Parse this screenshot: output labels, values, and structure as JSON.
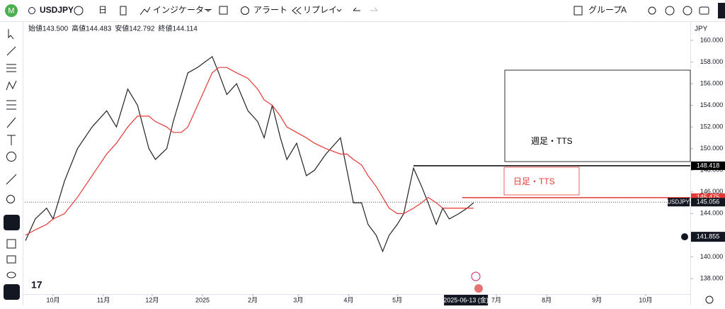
{
  "toolbar": {
    "symbol": "USDJPY",
    "interval": "日",
    "indicators": "インジケーター",
    "alert": "アラート",
    "replay": "リプレイ",
    "group": "グループ",
    "group_id": "A"
  },
  "ohlc": [
    "始値143.500",
    "高値144.483",
    "安値142.792",
    "終値144.114"
  ],
  "chart_data": {
    "type": "line",
    "currency": "JPY",
    "x": [
      -17,
      -11,
      -4,
      0,
      7,
      15,
      24,
      33,
      39,
      46,
      52,
      59,
      63,
      70,
      74,
      79,
      83,
      89,
      98,
      102,
      107,
      113,
      120,
      126,
      130,
      135,
      140,
      144,
      150,
      156,
      161,
      168,
      177,
      181,
      185,
      190,
      194,
      199,
      203,
      207,
      212,
      216,
      222,
      227,
      231,
      236,
      240,
      244,
      250,
      255,
      259
    ],
    "series": [
      {
        "color": "#222222",
        "values": [
          141.5,
          143.5,
          144.5,
          143.5,
          147,
          150,
          152,
          153.5,
          152,
          155.5,
          154,
          150,
          149,
          150,
          152.5,
          155,
          157,
          157.5,
          158.5,
          157,
          155,
          156,
          153.5,
          152.5,
          151,
          154,
          151,
          149,
          150.5,
          147.5,
          148,
          149.5,
          151,
          148,
          145,
          145,
          143,
          142,
          140.5,
          142,
          143,
          144,
          148.2,
          146.5,
          145,
          143,
          144.5,
          143.5,
          144,
          144.5,
          145
        ]
      },
      {
        "color": "#e53935",
        "values": [
          142,
          142.5,
          143,
          143.5,
          144,
          145.5,
          147.5,
          149.5,
          150.5,
          152,
          153,
          153,
          152.5,
          152,
          151.5,
          151.5,
          152,
          154,
          157,
          157.5,
          157.5,
          157,
          156.5,
          155.5,
          154.5,
          154,
          153,
          152,
          151.5,
          151,
          150.5,
          150,
          149.5,
          149.5,
          149,
          148.5,
          147.5,
          146.5,
          145.5,
          144.5,
          144,
          144,
          144.5,
          145,
          145.5,
          145,
          144.5,
          144.5,
          144.5,
          144.5,
          144.5
        ]
      }
    ],
    "xlim": [
      -17.45,
      392.5
    ],
    "ylim": [
      136.56,
      161.57
    ],
    "xticks": [
      {
        "value": 0,
        "label": "10月"
      },
      {
        "value": 31,
        "label": "11月"
      },
      {
        "value": 61,
        "label": "12月"
      },
      {
        "value": 92,
        "label": "2025"
      },
      {
        "value": 123,
        "label": "2月"
      },
      {
        "value": 151,
        "label": "3月"
      },
      {
        "value": 182,
        "label": "4月"
      },
      {
        "value": 212,
        "label": "5月"
      },
      {
        "value": 273,
        "label": "7月"
      },
      {
        "value": 304,
        "label": "8月"
      },
      {
        "value": 335,
        "label": "9月"
      },
      {
        "value": 365,
        "label": "10月"
      }
    ],
    "yticks": [
      {
        "value": 138,
        "label": "138.000"
      },
      {
        "value": 140,
        "label": "140.000"
      },
      {
        "value": 142,
        "label": "142.000"
      },
      {
        "value": 144,
        "label": "144.000"
      },
      {
        "value": 146,
        "label": "146.000"
      },
      {
        "value": 148,
        "label": "148.000"
      },
      {
        "value": 150,
        "label": "150.000"
      },
      {
        "value": 152,
        "label": "152.000"
      },
      {
        "value": 154,
        "label": "154.000"
      },
      {
        "value": 156,
        "label": "156.000"
      },
      {
        "value": 158,
        "label": "158.000"
      },
      {
        "value": 160,
        "label": "160.000"
      }
    ],
    "levels": [
      {
        "value": 148.418,
        "x": 222,
        "color": "#000000"
      },
      {
        "value": 145.475,
        "x": 252,
        "color": "#e53935"
      }
    ],
    "last_price": {
      "name": "USDJPY",
      "value": 145.056
    },
    "crosshair_price": 141.855,
    "cursor_date": {
      "value": 253,
      "label": "2025-06-13 (金)"
    },
    "annotations": [
      {
        "text": "週足・TTS",
        "color": "#000000"
      },
      {
        "text": "日足・TTS",
        "color": "#e53935"
      }
    ]
  }
}
